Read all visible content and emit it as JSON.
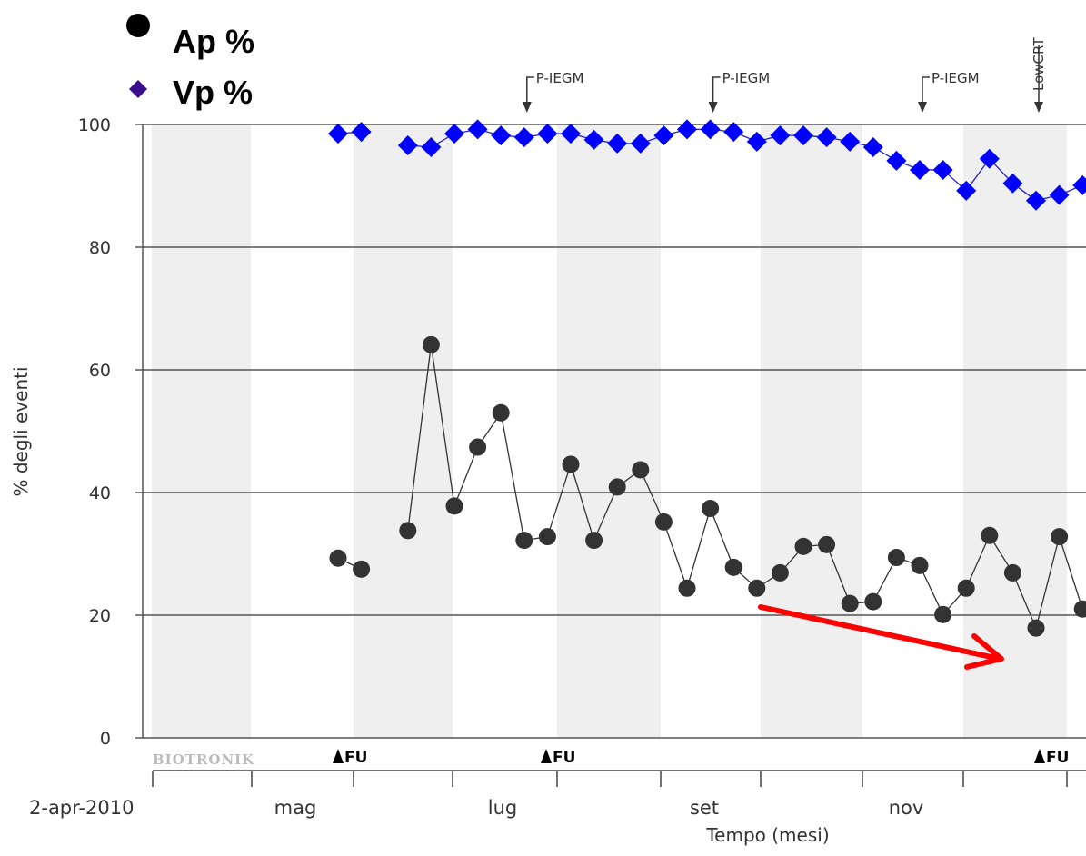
{
  "chart_data": {
    "type": "line",
    "ylabel": "% degli eventi",
    "xlabel": "Tempo (mesi)",
    "ylim": [
      0,
      100
    ],
    "yticks": [
      0,
      20,
      40,
      60,
      80,
      100
    ],
    "xticks": [
      "2-apr-2010",
      "mag",
      "lug",
      "set",
      "nov"
    ],
    "legend": [
      {
        "name": "Ap %",
        "marker": "circle",
        "color": "#000000"
      },
      {
        "name": "Vp %",
        "marker": "diamond",
        "color": "#3a0e8c"
      }
    ],
    "series": [
      {
        "name": "Ap %",
        "color": "#333333",
        "points": [
          [
            9,
            29.3
          ],
          [
            10,
            27.5
          ],
          [
            12,
            33.8
          ],
          [
            13,
            64.1
          ],
          [
            14,
            37.8
          ],
          [
            15,
            47.4
          ],
          [
            16,
            53.0
          ],
          [
            17,
            32.2
          ],
          [
            18,
            32.8
          ],
          [
            19,
            44.6
          ],
          [
            20,
            32.2
          ],
          [
            21,
            40.9
          ],
          [
            22,
            43.7
          ],
          [
            23,
            35.2
          ],
          [
            24,
            24.4
          ],
          [
            25,
            37.4
          ],
          [
            26,
            27.8
          ],
          [
            27,
            24.4
          ],
          [
            28,
            26.9
          ],
          [
            29,
            31.2
          ],
          [
            30,
            31.5
          ],
          [
            31,
            21.9
          ],
          [
            32,
            22.2
          ],
          [
            33,
            29.4
          ],
          [
            34,
            28.1
          ],
          [
            35,
            20.1
          ],
          [
            36,
            24.4
          ],
          [
            37,
            33.0
          ],
          [
            38,
            26.9
          ],
          [
            39,
            17.9
          ],
          [
            40,
            32.8
          ],
          [
            41,
            21.0
          ]
        ]
      },
      {
        "name": "Vp %",
        "color": "#0000ff",
        "points": [
          [
            9,
            98.5
          ],
          [
            10,
            98.8
          ],
          [
            12,
            96.6
          ],
          [
            13,
            96.3
          ],
          [
            14,
            98.5
          ],
          [
            15,
            99.2
          ],
          [
            16,
            98.2
          ],
          [
            17,
            97.9
          ],
          [
            18,
            98.5
          ],
          [
            19,
            98.5
          ],
          [
            20,
            97.5
          ],
          [
            21,
            96.9
          ],
          [
            22,
            96.9
          ],
          [
            23,
            98.2
          ],
          [
            24,
            99.2
          ],
          [
            25,
            99.2
          ],
          [
            26,
            98.8
          ],
          [
            27,
            97.2
          ],
          [
            28,
            98.2
          ],
          [
            29,
            98.2
          ],
          [
            30,
            97.9
          ],
          [
            31,
            97.2
          ],
          [
            32,
            96.3
          ],
          [
            33,
            94.1
          ],
          [
            34,
            92.6
          ],
          [
            35,
            92.6
          ],
          [
            36,
            89.2
          ],
          [
            37,
            94.4
          ],
          [
            38,
            90.4
          ],
          [
            39,
            87.6
          ],
          [
            40,
            88.5
          ],
          [
            41,
            90.1
          ]
        ]
      }
    ],
    "annotations": {
      "top_markers": [
        {
          "label": "P-IEGM",
          "x": 17
        },
        {
          "label": "P-IEGM",
          "x": 25
        },
        {
          "label": "P-IEGM",
          "x": 34
        },
        {
          "label": "LowCRT",
          "x": 39
        }
      ],
      "fu_markers": [
        {
          "label": "FU",
          "x": 9
        },
        {
          "label": "FU",
          "x": 18
        },
        {
          "label": "FU",
          "x": 39
        }
      ],
      "trend_arrow": {
        "from": [
          27,
          21.3
        ],
        "to": [
          37,
          12.5
        ],
        "color": "#ff0000"
      }
    },
    "grid": true
  },
  "branding": {
    "text": "BIOTRONIK"
  }
}
